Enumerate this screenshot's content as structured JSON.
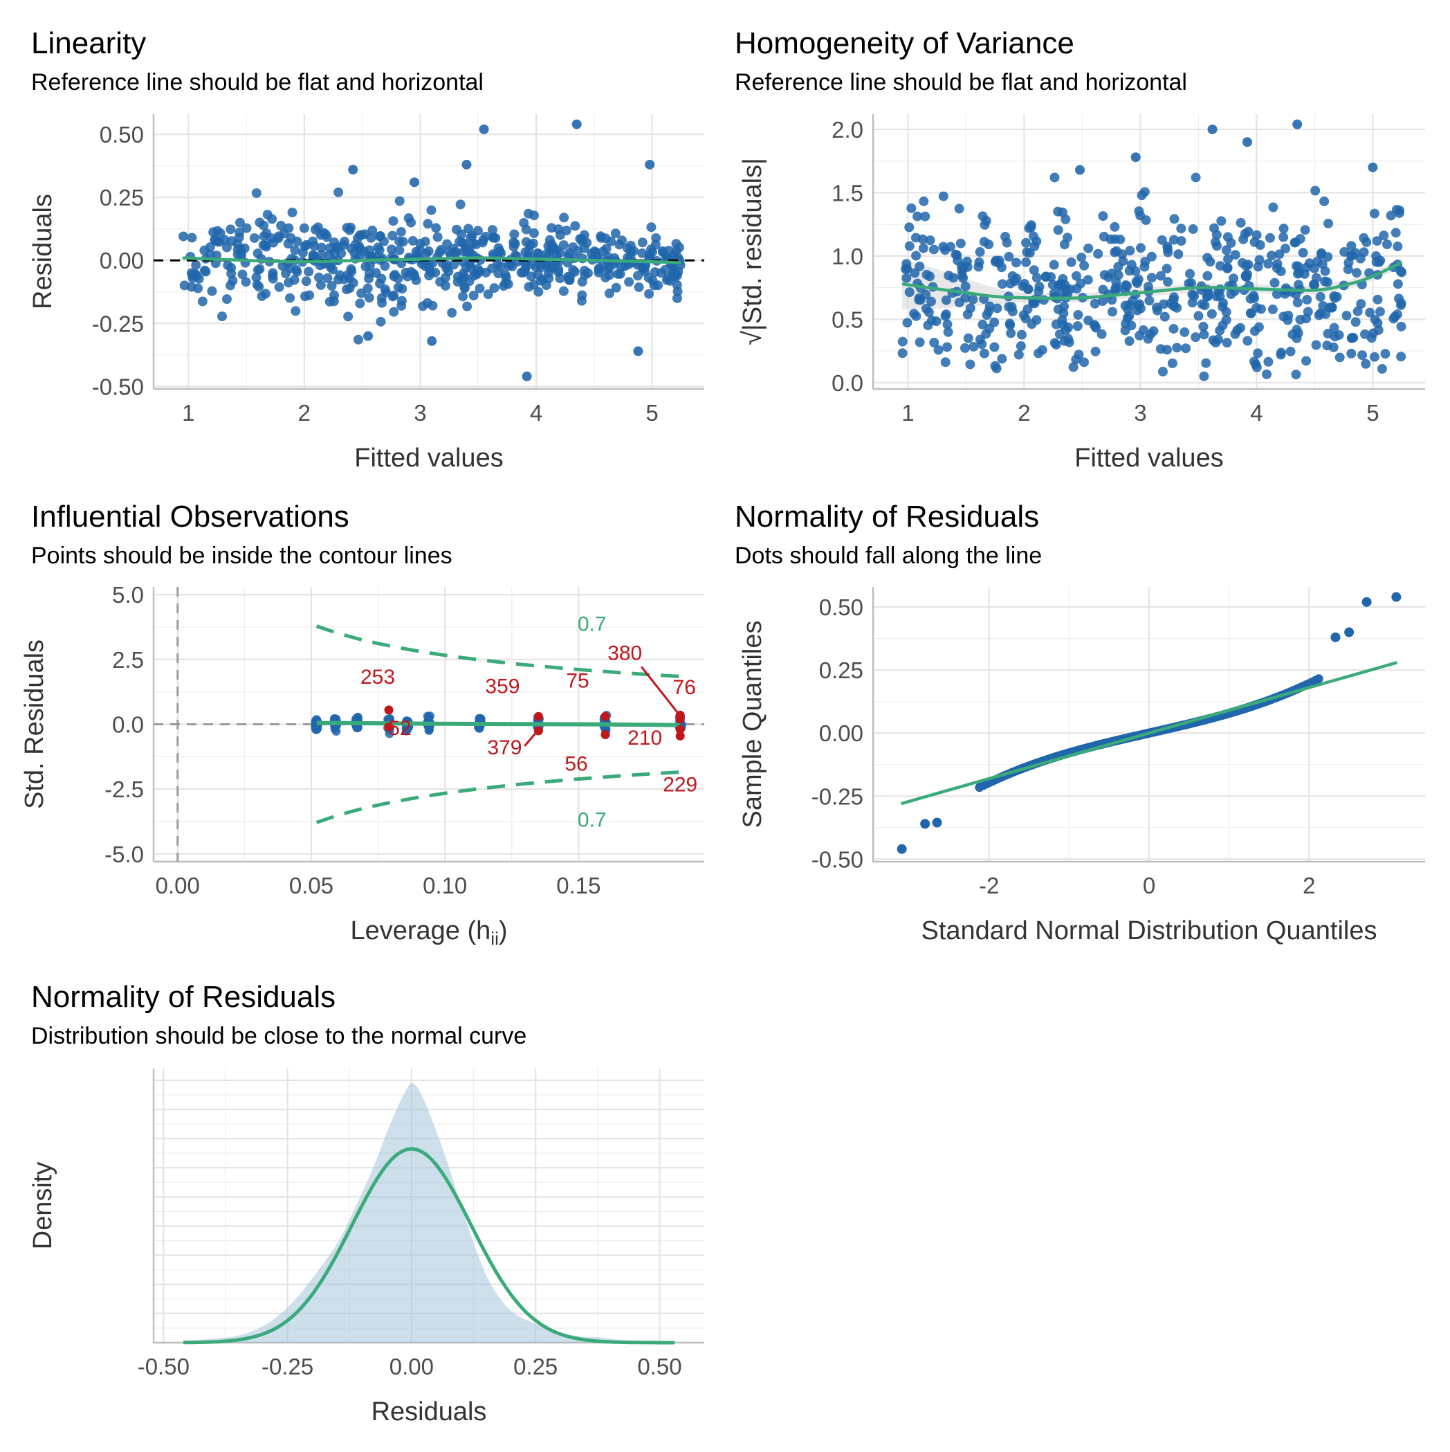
{
  "colors": {
    "point": "#2166ac",
    "reference": "#3aaa7a",
    "influential": "#c2161b",
    "density_fill": "#9ebfd9",
    "band": "#d9d9d9"
  },
  "panels": [
    {
      "title": "Linearity",
      "subtitle": "Reference line should be flat and horizontal"
    },
    {
      "title": "Homogeneity of Variance",
      "subtitle": "Reference line should be flat and horizontal"
    },
    {
      "title": "Influential Observations",
      "subtitle": "Points should be inside the contour lines"
    },
    {
      "title": "Normality of Residuals",
      "subtitle": "Dots should fall along the line"
    },
    {
      "title": "Normality of Residuals",
      "subtitle": "Distribution should be close to the normal curve"
    }
  ],
  "chart_data": [
    {
      "type": "scatter",
      "title": "Linearity",
      "subtitle": "Reference line should be flat and horizontal",
      "xlabel": "Fitted values",
      "ylabel": "Residuals",
      "xlim": [
        0.7,
        5.45
      ],
      "ylim": [
        -0.51,
        0.58
      ],
      "xticks": [
        1,
        2,
        3,
        4,
        5
      ],
      "xtick_labels": [
        "1",
        "2",
        "3",
        "4",
        "5"
      ],
      "yticks": [
        -0.5,
        -0.25,
        0,
        0.25,
        0.5
      ],
      "ytick_labels": [
        "-0.50",
        "-0.25",
        "0.00",
        "0.25",
        "0.50"
      ],
      "grid": true,
      "reference_line": {
        "type": "dashed",
        "y": 0
      },
      "smooth": {
        "x": [
          0.95,
          1.5,
          2.0,
          2.5,
          3.0,
          3.5,
          4.0,
          4.5,
          5.0,
          5.25
        ],
        "y": [
          0.01,
          0.0,
          -0.005,
          0.0,
          0.005,
          0.01,
          0.005,
          0.0,
          -0.005,
          -0.01
        ]
      },
      "highlighted_points": [
        {
          "x": 3.55,
          "y": 0.52
        },
        {
          "x": 4.35,
          "y": 0.54
        },
        {
          "x": 3.4,
          "y": 0.38
        },
        {
          "x": 2.42,
          "y": 0.36
        },
        {
          "x": 2.95,
          "y": 0.31
        },
        {
          "x": 4.98,
          "y": 0.38
        },
        {
          "x": 3.92,
          "y": -0.46
        },
        {
          "x": 4.88,
          "y": -0.36
        },
        {
          "x": 3.1,
          "y": -0.32
        },
        {
          "x": 2.55,
          "y": -0.3
        }
      ]
    },
    {
      "type": "scatter",
      "title": "Homogeneity of Variance",
      "subtitle": "Reference line should be flat and horizontal",
      "xlabel": "Fitted values",
      "ylabel": "√|Std. residuals|",
      "xlim": [
        0.7,
        5.45
      ],
      "ylim": [
        -0.05,
        2.12
      ],
      "xticks": [
        1,
        2,
        3,
        4,
        5
      ],
      "xtick_labels": [
        "1",
        "2",
        "3",
        "4",
        "5"
      ],
      "yticks": [
        0,
        0.5,
        1,
        1.5,
        2
      ],
      "ytick_labels": [
        "0.0",
        "0.5",
        "1.0",
        "1.5",
        "2.0"
      ],
      "grid": true,
      "smooth": {
        "x": [
          0.95,
          1.25,
          1.5,
          1.75,
          2.0,
          2.5,
          3.0,
          3.5,
          4.0,
          4.5,
          4.8,
          5.0,
          5.25
        ],
        "y": [
          0.78,
          0.74,
          0.71,
          0.68,
          0.67,
          0.67,
          0.71,
          0.75,
          0.74,
          0.73,
          0.78,
          0.84,
          0.95
        ]
      },
      "highlighted_points": [
        {
          "x": 3.62,
          "y": 2.0
        },
        {
          "x": 4.35,
          "y": 2.04
        },
        {
          "x": 3.92,
          "y": 1.9
        },
        {
          "x": 2.96,
          "y": 1.78
        },
        {
          "x": 2.48,
          "y": 1.68
        },
        {
          "x": 5.0,
          "y": 1.7
        }
      ]
    },
    {
      "type": "scatter",
      "title": "Influential Observations",
      "subtitle": "Points should be inside the contour lines",
      "xlabel": "Leverage (h",
      "xlabel_subscript": "ii",
      "xlabel_suffix": ")",
      "ylabel": "Std. Residuals",
      "xlim": [
        -0.009,
        0.197
      ],
      "ylim": [
        -5.3,
        5.3
      ],
      "xticks": [
        0,
        0.05,
        0.1,
        0.15
      ],
      "xtick_labels": [
        "0.00",
        "0.05",
        "0.10",
        "0.15"
      ],
      "yticks": [
        -5,
        -2.5,
        0,
        2.5,
        5
      ],
      "ytick_labels": [
        "-5.0",
        "-2.5",
        "0.0",
        "2.5",
        "5.0"
      ],
      "grid": true,
      "reference_lines": {
        "x": 0,
        "y": 0
      },
      "contour_level": "0.7",
      "leverage_groups": [
        0.052,
        0.059,
        0.067,
        0.079,
        0.086,
        0.094,
        0.113,
        0.135,
        0.16,
        0.188
      ],
      "fit_line": {
        "x": [
          0.052,
          0.1,
          0.15,
          0.188
        ],
        "y": [
          0.05,
          0.02,
          0.0,
          -0.03
        ]
      },
      "labeled_points": [
        {
          "label": "253",
          "x": 0.079,
          "y": 0.55
        },
        {
          "label": "52",
          "x": 0.079,
          "y": -0.1
        },
        {
          "label": "359",
          "x": 0.135,
          "y": 0.3
        },
        {
          "label": "379",
          "x": 0.135,
          "y": -0.25
        },
        {
          "label": "75",
          "x": 0.16,
          "y": 0.3
        },
        {
          "label": "56",
          "x": 0.16,
          "y": -0.4
        },
        {
          "label": "380",
          "x": 0.188,
          "y": 0.35
        },
        {
          "label": "76",
          "x": 0.188,
          "y": 0.2
        },
        {
          "label": "210",
          "x": 0.188,
          "y": -0.2
        },
        {
          "label": "229",
          "x": 0.188,
          "y": -0.45
        }
      ]
    },
    {
      "type": "scatter",
      "title": "Normality of Residuals",
      "subtitle": "Dots should fall along the line",
      "xlabel": "Standard Normal Distribution Quantiles",
      "ylabel": "Sample Quantiles",
      "xlim": [
        -3.45,
        3.45
      ],
      "ylim": [
        -0.51,
        0.58
      ],
      "xticks": [
        -2,
        0,
        2
      ],
      "xtick_labels": [
        "-2",
        "0",
        "2"
      ],
      "yticks": [
        -0.5,
        -0.25,
        0,
        0.25,
        0.5
      ],
      "ytick_labels": [
        "-0.50",
        "-0.25",
        "0.00",
        "0.25",
        "0.50"
      ],
      "grid": true,
      "reference_line": {
        "x": [
          -3.1,
          3.1
        ],
        "y": [
          -0.28,
          0.28
        ]
      },
      "extreme_points": [
        {
          "x": -3.09,
          "y": -0.46
        },
        {
          "x": -2.8,
          "y": -0.36
        },
        {
          "x": -2.65,
          "y": -0.355
        },
        {
          "x": 2.33,
          "y": 0.38
        },
        {
          "x": 2.5,
          "y": 0.4
        },
        {
          "x": 2.72,
          "y": 0.52
        },
        {
          "x": 3.09,
          "y": 0.54
        }
      ]
    },
    {
      "type": "area",
      "title": "Normality of Residuals",
      "subtitle": "Distribution should be close to the normal curve",
      "xlabel": "Residuals",
      "ylabel": "Density",
      "xlim": [
        -0.52,
        0.59
      ],
      "ylim": [
        0,
        4.7
      ],
      "xticks": [
        -0.5,
        -0.25,
        0,
        0.25,
        0.5
      ],
      "xtick_labels": [
        "-0.50",
        "-0.25",
        "0.00",
        "0.25",
        "0.50"
      ],
      "grid": true,
      "density": {
        "x": [
          -0.46,
          -0.4,
          -0.35,
          -0.3,
          -0.25,
          -0.2,
          -0.15,
          -0.12,
          -0.08,
          -0.05,
          -0.03,
          -0.01,
          0.0,
          0.01,
          0.02,
          0.04,
          0.07,
          0.1,
          0.13,
          0.16,
          0.2,
          0.25,
          0.3,
          0.35,
          0.38,
          0.42,
          0.47,
          0.54
        ],
        "y": [
          0.03,
          0.07,
          0.12,
          0.28,
          0.6,
          1.1,
          1.7,
          2.2,
          2.95,
          3.6,
          4.0,
          4.35,
          4.45,
          4.4,
          4.25,
          3.85,
          3.15,
          2.35,
          1.6,
          1.0,
          0.55,
          0.32,
          0.17,
          0.1,
          0.09,
          0.05,
          0.03,
          0.01
        ]
      },
      "normal_curve": {
        "mean": 0,
        "sd": 0.12
      }
    }
  ]
}
